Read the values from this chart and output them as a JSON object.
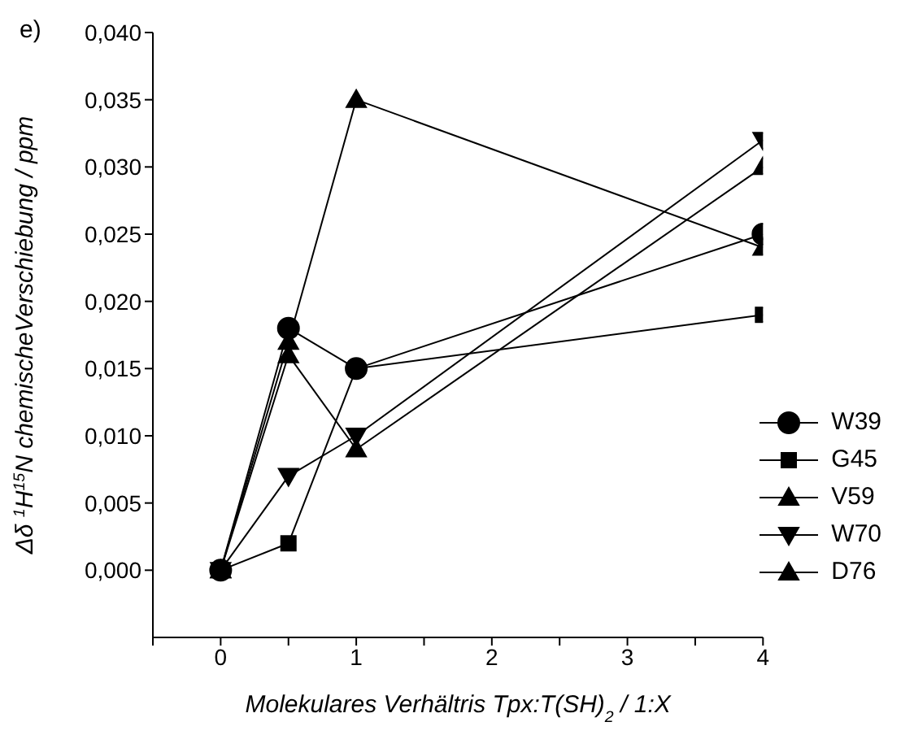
{
  "chart_data": {
    "type": "line",
    "annotations": [
      "e)"
    ],
    "xlabel": "Molekulares Verhältris Tpx:T(SH)$_{2}$ / 1:X",
    "ylabel": "Δδ $^{1}$H$^{15}$N chemischeVerschiebung / ppm",
    "x": [
      0,
      0.5,
      1,
      4
    ],
    "xlim": [
      -0.5,
      4
    ],
    "xticks": [
      {
        "value": -0.5,
        "label": null
      },
      0,
      {
        "value": 0.5,
        "label": null
      },
      1,
      {
        "value": 1.5,
        "label": null
      },
      2,
      {
        "value": 2.5,
        "label": null
      },
      3,
      {
        "value": 3.5,
        "label": null
      },
      4
    ],
    "ylim": [
      -0.005,
      0.04
    ],
    "yticks": [
      {
        "value": 0,
        "label": "0,000"
      },
      {
        "value": 0.005,
        "label": "0,005"
      },
      {
        "value": 0.01,
        "label": "0,010"
      },
      {
        "value": 0.015,
        "label": "0,015"
      },
      {
        "value": 0.02,
        "label": "0,020"
      },
      {
        "value": 0.025,
        "label": "0,025"
      },
      {
        "value": 0.03,
        "label": "0,030"
      },
      {
        "value": 0.035,
        "label": "0,035"
      },
      {
        "value": 0.04,
        "label": "0,040"
      }
    ],
    "grid": false,
    "legend": "right",
    "line_style": "solid",
    "series": [
      {
        "name": "W39",
        "color": "#000000",
        "marker": "circle",
        "values": [
          0,
          0.018,
          0.015,
          0.025
        ]
      },
      {
        "name": "G45",
        "color": "#000000",
        "marker": "square",
        "values": [
          0,
          0.002,
          0.015,
          0.019
        ]
      },
      {
        "name": "V59",
        "color": "#000000",
        "marker": "triangle",
        "values": [
          0,
          0.017,
          0.035,
          0.024
        ]
      },
      {
        "name": "W70",
        "color": "#000000",
        "marker": "triangle-down",
        "values": [
          0,
          0.007,
          0.01,
          0.032
        ]
      },
      {
        "name": "D76",
        "color": "#000000",
        "marker": "triangle",
        "values": [
          0,
          0.016,
          0.009,
          0.03
        ]
      }
    ]
  }
}
